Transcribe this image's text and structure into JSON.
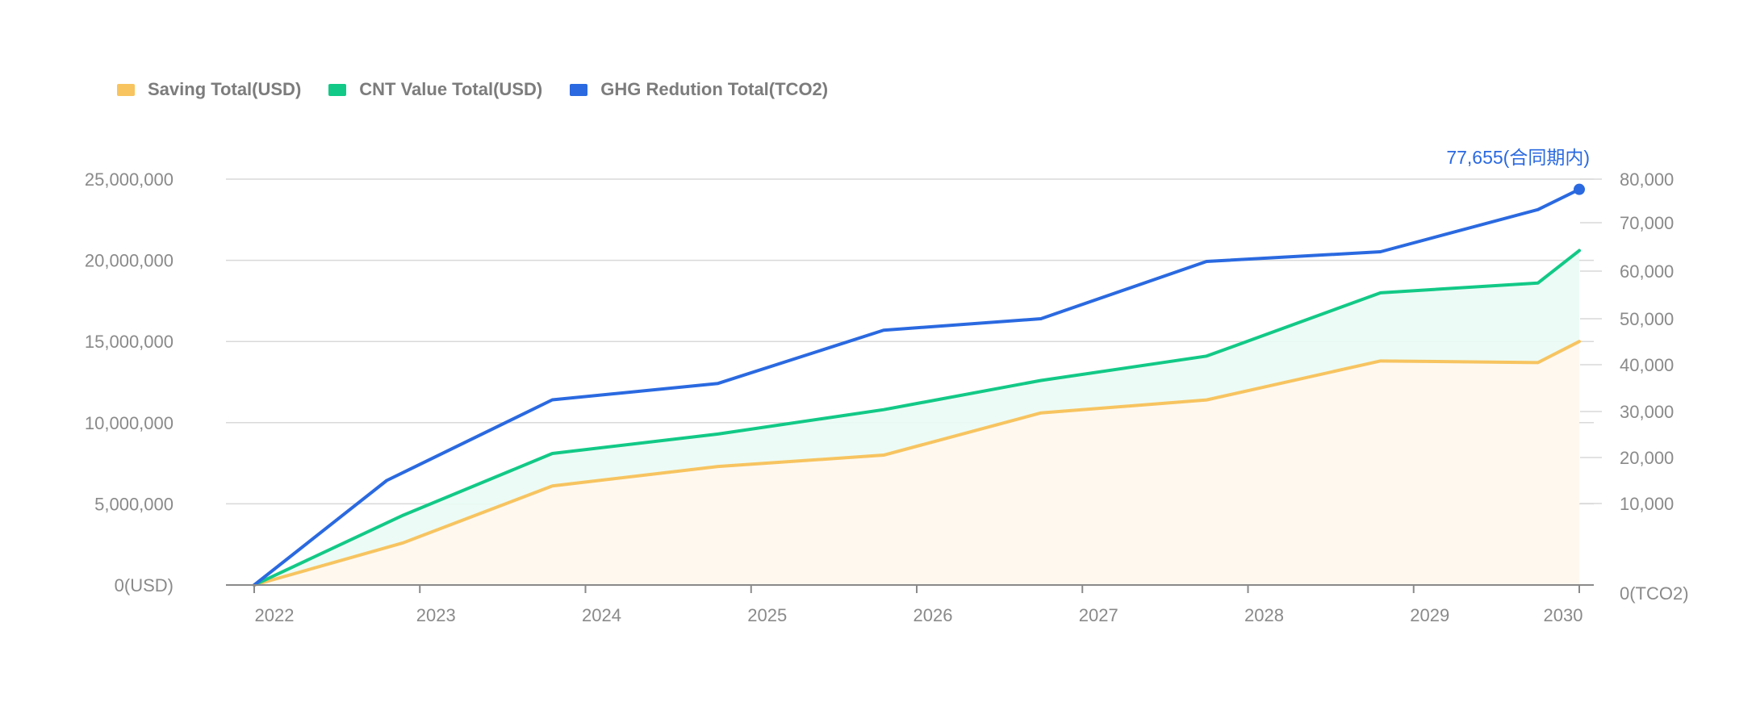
{
  "chart_data": {
    "type": "line",
    "legend": [
      {
        "name": "Saving Total(USD)",
        "color": "#f7c460"
      },
      {
        "name": "CNT Value Total(USD)",
        "color": "#12c987"
      },
      {
        "name": "GHG Redution Total(TCO2)",
        "color": "#2a69e0"
      }
    ],
    "x_ticks": [
      "2022",
      "2023",
      "2024",
      "2025",
      "2026",
      "2027",
      "2028",
      "2029",
      "2030"
    ],
    "y_left": {
      "range": [
        0,
        25000000
      ],
      "ticks": [
        {
          "value": 0,
          "label": "0(USD)"
        },
        {
          "value": 5000000,
          "label": "5,000,000"
        },
        {
          "value": 10000000,
          "label": "10,000,000"
        },
        {
          "value": 15000000,
          "label": "15,000,000"
        },
        {
          "value": 20000000,
          "label": "20,000,000"
        },
        {
          "value": 25000000,
          "label": "25,000,000"
        }
      ]
    },
    "y_right": {
      "range": [
        0,
        80000
      ],
      "ticks": [
        {
          "value": 0,
          "label": "0(TCO2)"
        },
        {
          "value": 10000,
          "label": "10,000"
        },
        {
          "value": 20000,
          "label": "20,000"
        },
        {
          "value": 30000,
          "label": "30,000"
        },
        {
          "value": 40000,
          "label": "40,000"
        },
        {
          "value": 50000,
          "label": "50,000"
        },
        {
          "value": 60000,
          "label": "60,000"
        },
        {
          "value": 70000,
          "label": "70,000"
        },
        {
          "value": 80000,
          "label": "80,000"
        }
      ]
    },
    "series": [
      {
        "name": "Saving Total(USD)",
        "axis": "left",
        "color": "#f7c460",
        "area": true,
        "points": [
          [
            2022.0,
            0
          ],
          [
            2022.9,
            2600000
          ],
          [
            2023.8,
            6100000
          ],
          [
            2024.8,
            7300000
          ],
          [
            2025.8,
            8000000
          ],
          [
            2026.75,
            10600000
          ],
          [
            2027.75,
            11400000
          ],
          [
            2028.8,
            13800000
          ],
          [
            2029.75,
            13700000
          ],
          [
            2030.0,
            15000000
          ]
        ]
      },
      {
        "name": "CNT Value Total(USD)",
        "axis": "left",
        "color": "#12c987",
        "area": true,
        "points": [
          [
            2022.0,
            0
          ],
          [
            2022.9,
            4300000
          ],
          [
            2023.8,
            8100000
          ],
          [
            2024.8,
            9300000
          ],
          [
            2025.8,
            10800000
          ],
          [
            2026.75,
            12600000
          ],
          [
            2027.75,
            14100000
          ],
          [
            2028.8,
            18000000
          ],
          [
            2029.75,
            18600000
          ],
          [
            2030.0,
            20600000
          ]
        ]
      },
      {
        "name": "GHG Redution Total(TCO2)",
        "axis": "right",
        "color": "#2a69e0",
        "area": false,
        "points": [
          [
            2022.0,
            0
          ],
          [
            2022.8,
            15000
          ],
          [
            2023.8,
            32500
          ],
          [
            2024.8,
            36000
          ],
          [
            2025.8,
            47500
          ],
          [
            2026.75,
            50000
          ],
          [
            2027.75,
            62000
          ],
          [
            2028.8,
            64000
          ],
          [
            2029.75,
            73000
          ],
          [
            2030.0,
            77655
          ]
        ]
      }
    ],
    "annotation": {
      "series": "GHG Redution Total(TCO2)",
      "label": "77,655(合同期内)",
      "value": 77655,
      "color": "#2a69e0"
    }
  }
}
